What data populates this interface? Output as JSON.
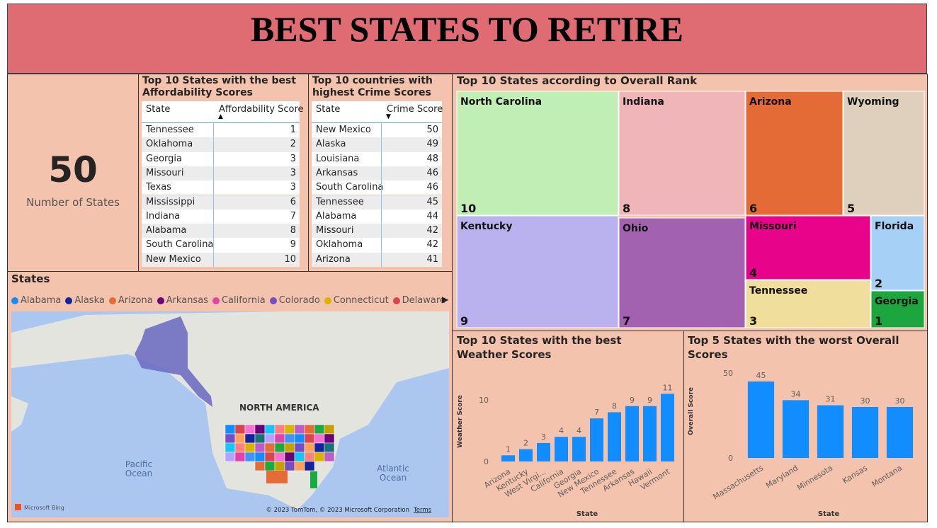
{
  "header": {
    "title": "BEST STATES TO RETIRE"
  },
  "kpi": {
    "value": 50,
    "label": "Number of States"
  },
  "tables": [
    {
      "title": "Top 10 States with the best Affordability Scores",
      "columns": [
        "State",
        "Affordability Score"
      ],
      "rows": [
        [
          "Tennessee",
          1
        ],
        [
          "Oklahoma",
          2
        ],
        [
          "Georgia",
          3
        ],
        [
          "Missouri",
          3
        ],
        [
          "Texas",
          3
        ],
        [
          "Mississippi",
          6
        ],
        [
          "Indiana",
          7
        ],
        [
          "Alabama",
          8
        ],
        [
          "South Carolina",
          9
        ],
        [
          "New Mexico",
          10
        ]
      ]
    },
    {
      "title": "Top 10 countries with highest Crime Scores",
      "columns": [
        "State",
        "Crime Score"
      ],
      "rows": [
        [
          "New Mexico",
          50
        ],
        [
          "Alaska",
          49
        ],
        [
          "Louisiana",
          48
        ],
        [
          "Arkansas",
          46
        ],
        [
          "South Carolina",
          46
        ],
        [
          "Tennessee",
          45
        ],
        [
          "Alabama",
          44
        ],
        [
          "Missouri",
          42
        ],
        [
          "Oklahoma",
          42
        ],
        [
          "Arizona",
          41
        ]
      ]
    }
  ],
  "map": {
    "title": "States",
    "legend": [
      {
        "name": "Alabama",
        "color": "#118dff"
      },
      {
        "name": "Alaska",
        "color": "#12239e"
      },
      {
        "name": "Arizona",
        "color": "#e66c37"
      },
      {
        "name": "Arkansas",
        "color": "#6b007b"
      },
      {
        "name": "California",
        "color": "#e044a7"
      },
      {
        "name": "Colorado",
        "color": "#744ec2"
      },
      {
        "name": "Connecticut",
        "color": "#d9b300"
      },
      {
        "name": "Delaware",
        "color": "#d64550"
      }
    ],
    "labels": [
      "NORTH AMERICA",
      "Pacific\nOcean",
      "Atlantic\nOcean"
    ],
    "logo": "Microsoft Bing",
    "credits": "© 2023 TomTom, © 2023 Microsoft Corporation",
    "terms": "Terms"
  },
  "chart_data": [
    {
      "type": "treemap",
      "title": "Top 10 States according to Overall Rank",
      "categories": [
        "North Carolina",
        "Indiana",
        "Arizona",
        "Wyoming",
        "Kentucky",
        "Ohio",
        "Missouri",
        "Florida",
        "Tennessee",
        "Georgia"
      ],
      "values": [
        10,
        8,
        6,
        5,
        9,
        7,
        4,
        2,
        3,
        1
      ],
      "colors": [
        "#c0eeb4",
        "#efb5b8",
        "#e46b35",
        "#dfcfbd",
        "#b9b2ee",
        "#a262b0",
        "#e7048a",
        "#a7d0f6",
        "#f0de9c",
        "#1ea63e"
      ]
    },
    {
      "type": "bar",
      "title": "Top 10 States with the best Weather Scores",
      "x_label": "State",
      "y_label": "Weather Score",
      "categories": [
        "Arizona",
        "Kentucky",
        "West Virgi...",
        "California",
        "Georgia",
        "New Mexico",
        "Tennessee",
        "Arkansas",
        "Hawaii",
        "Vermont"
      ],
      "values": [
        1,
        2,
        3,
        4,
        4,
        7,
        8,
        9,
        9,
        11
      ],
      "color": "#118dff",
      "ylim": [
        0,
        13
      ],
      "yticks": [
        0,
        10
      ]
    },
    {
      "type": "bar",
      "title": "Top 5 States with the worst Overall Scores",
      "x_label": "State",
      "y_label": "Overall Score",
      "categories": [
        "Massachusetts",
        "Maryland",
        "Minnesota",
        "Kansas",
        "Montana"
      ],
      "values": [
        45,
        34,
        31,
        30,
        30
      ],
      "color": "#118dff",
      "ylim": [
        0,
        55
      ],
      "yticks": [
        0,
        50
      ]
    }
  ]
}
